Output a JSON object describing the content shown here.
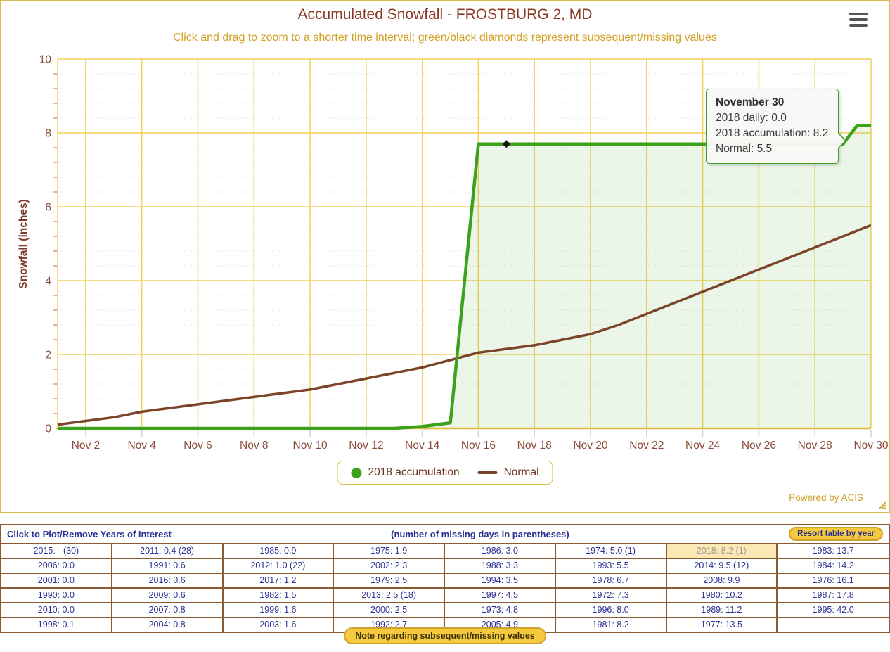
{
  "header": {
    "title": "Accumulated Snowfall - FROSTBURG 2, MD",
    "subtitle": "Click and drag to zoom to a shorter time interval; green/black diamonds represent subsequent/missing values"
  },
  "tooltip": {
    "title": "November 30",
    "lines": [
      "2018 daily: 0.0",
      "2018 accumulation: 8.2",
      "Normal: 5.5"
    ]
  },
  "legend": [
    {
      "label": "2018 accumulation",
      "marker": "circle",
      "color": "#3da21b"
    },
    {
      "label": "Normal",
      "marker": "line",
      "color": "#7c452a"
    }
  ],
  "powered_by": "Powered by ACIS",
  "colors": {
    "title": "#8b3a26",
    "subtitle_gold": "#d0a125",
    "grid_gold": "#f2d05a",
    "axis_gold": "#e0b93e",
    "axis_label": "#8b4a38",
    "axis_title": "#7a3b28",
    "accum_green": "#3da21b",
    "accum_fill": "rgba(68,163,33,0.10)",
    "normal_brown": "#7c452a",
    "missing_black": "#111111",
    "table_navy": "#2d3192",
    "table_border_brown": "#8a5a33",
    "button_gold": "#f6c93f",
    "highlight_cell_bg": "#fce8b2",
    "tick_mark_blue": "#c9d5e8"
  },
  "chart_data": {
    "type": "line",
    "title": "Accumulated Snowfall - FROSTBURG 2, MD",
    "xlabel": "",
    "ylabel": "Snowfall (inches)",
    "x_unit": "day of November",
    "xlim": [
      1,
      30
    ],
    "ylim": [
      0,
      10
    ],
    "grid": true,
    "legend_position": "bottom",
    "x_ticks": [
      {
        "day": 2,
        "label": "Nov 2"
      },
      {
        "day": 4,
        "label": "Nov 4"
      },
      {
        "day": 6,
        "label": "Nov 6"
      },
      {
        "day": 8,
        "label": "Nov 8"
      },
      {
        "day": 10,
        "label": "Nov 10"
      },
      {
        "day": 12,
        "label": "Nov 12"
      },
      {
        "day": 14,
        "label": "Nov 14"
      },
      {
        "day": 16,
        "label": "Nov 16"
      },
      {
        "day": 18,
        "label": "Nov 18"
      },
      {
        "day": 20,
        "label": "Nov 20"
      },
      {
        "day": 22,
        "label": "Nov 22"
      },
      {
        "day": 24,
        "label": "Nov 24"
      },
      {
        "day": 26,
        "label": "Nov 26"
      },
      {
        "day": 28,
        "label": "Nov 28"
      },
      {
        "day": 30,
        "label": "Nov 30"
      }
    ],
    "y_ticks": [
      0,
      2,
      4,
      6,
      8,
      10
    ],
    "y_minor_step": 0.4,
    "series": [
      {
        "name": "2018 accumulation",
        "color": "#3da21b",
        "fill": "rgba(68,163,33,0.10)",
        "points": [
          [
            1,
            0.0
          ],
          [
            2,
            0.0
          ],
          [
            3,
            0.0
          ],
          [
            4,
            0.0
          ],
          [
            5,
            0.0
          ],
          [
            6,
            0.0
          ],
          [
            7,
            0.0
          ],
          [
            8,
            0.0
          ],
          [
            9,
            0.0
          ],
          [
            10,
            0.0
          ],
          [
            11,
            0.0
          ],
          [
            12,
            0.0
          ],
          [
            13,
            0.0
          ],
          [
            14,
            0.05
          ],
          [
            15,
            0.15
          ],
          [
            16,
            7.7
          ],
          [
            17,
            7.7
          ],
          [
            18,
            7.7
          ],
          [
            19,
            7.7
          ],
          [
            20,
            7.7
          ],
          [
            21,
            7.7
          ],
          [
            22,
            7.7
          ],
          [
            23,
            7.7
          ],
          [
            24,
            7.7
          ],
          [
            25,
            7.7
          ],
          [
            26,
            7.7
          ],
          [
            27,
            7.7
          ],
          [
            28,
            7.7
          ],
          [
            29,
            7.7
          ],
          [
            29.5,
            8.2
          ],
          [
            30,
            8.2
          ]
        ]
      },
      {
        "name": "Normal",
        "color": "#7c452a",
        "points": [
          [
            1,
            0.1
          ],
          [
            2,
            0.2
          ],
          [
            3,
            0.3
          ],
          [
            4,
            0.45
          ],
          [
            5,
            0.55
          ],
          [
            6,
            0.65
          ],
          [
            7,
            0.75
          ],
          [
            8,
            0.85
          ],
          [
            9,
            0.95
          ],
          [
            10,
            1.05
          ],
          [
            11,
            1.2
          ],
          [
            12,
            1.35
          ],
          [
            13,
            1.5
          ],
          [
            14,
            1.65
          ],
          [
            15,
            1.85
          ],
          [
            16,
            2.05
          ],
          [
            17,
            2.15
          ],
          [
            18,
            2.25
          ],
          [
            19,
            2.4
          ],
          [
            20,
            2.55
          ],
          [
            21,
            2.8
          ],
          [
            22,
            3.1
          ],
          [
            23,
            3.4
          ],
          [
            24,
            3.7
          ],
          [
            25,
            4.0
          ],
          [
            26,
            4.3
          ],
          [
            27,
            4.6
          ],
          [
            28,
            4.9
          ],
          [
            29,
            5.2
          ],
          [
            30,
            5.5
          ]
        ]
      }
    ],
    "missing_marker": {
      "day": 17,
      "value": 7.7,
      "shape": "diamond",
      "color": "#111111"
    }
  },
  "table": {
    "header_left": "Click to Plot/Remove Years of Interest",
    "header_center": "(number of missing days in parentheses)",
    "resort_button": "Resort table by year",
    "rows": [
      [
        "2015: - (30)",
        "2011: 0.4 (28)",
        "1985: 0.9",
        "1975: 1.9",
        "1986: 3.0",
        "1974: 5.0 (1)",
        "2018: 8.2 (1)",
        "1983: 13.7"
      ],
      [
        "2006: 0.0",
        "1991: 0.6",
        "2012: 1.0 (22)",
        "2002: 2.3",
        "1988: 3.3",
        "1993: 5.5",
        "2014: 9.5 (12)",
        "1984: 14.2"
      ],
      [
        "2001: 0.0",
        "2016: 0.6",
        "2017: 1.2",
        "1979: 2.5",
        "1994: 3.5",
        "1978: 6.7",
        "2008: 9.9",
        "1976: 16.1"
      ],
      [
        "1990: 0.0",
        "2009: 0.6",
        "1982: 1.5",
        "2013: 2.5 (18)",
        "1997: 4.5",
        "1972: 7.3",
        "1980: 10.2",
        "1987: 17.8"
      ],
      [
        "2010: 0.0",
        "2007: 0.8",
        "1999: 1.6",
        "2000: 2.5",
        "1973: 4.8",
        "1996: 8.0",
        "1989: 11.2",
        "1995: 42.0"
      ],
      [
        "1998: 0.1",
        "2004: 0.8",
        "2003: 1.6",
        "1992: 2.7",
        "2005: 4.9",
        "1981: 8.2",
        "1977: 13.5",
        ""
      ]
    ],
    "highlight": {
      "row": 0,
      "col": 6
    }
  },
  "note_button": "Note regarding subsequent/missing values"
}
